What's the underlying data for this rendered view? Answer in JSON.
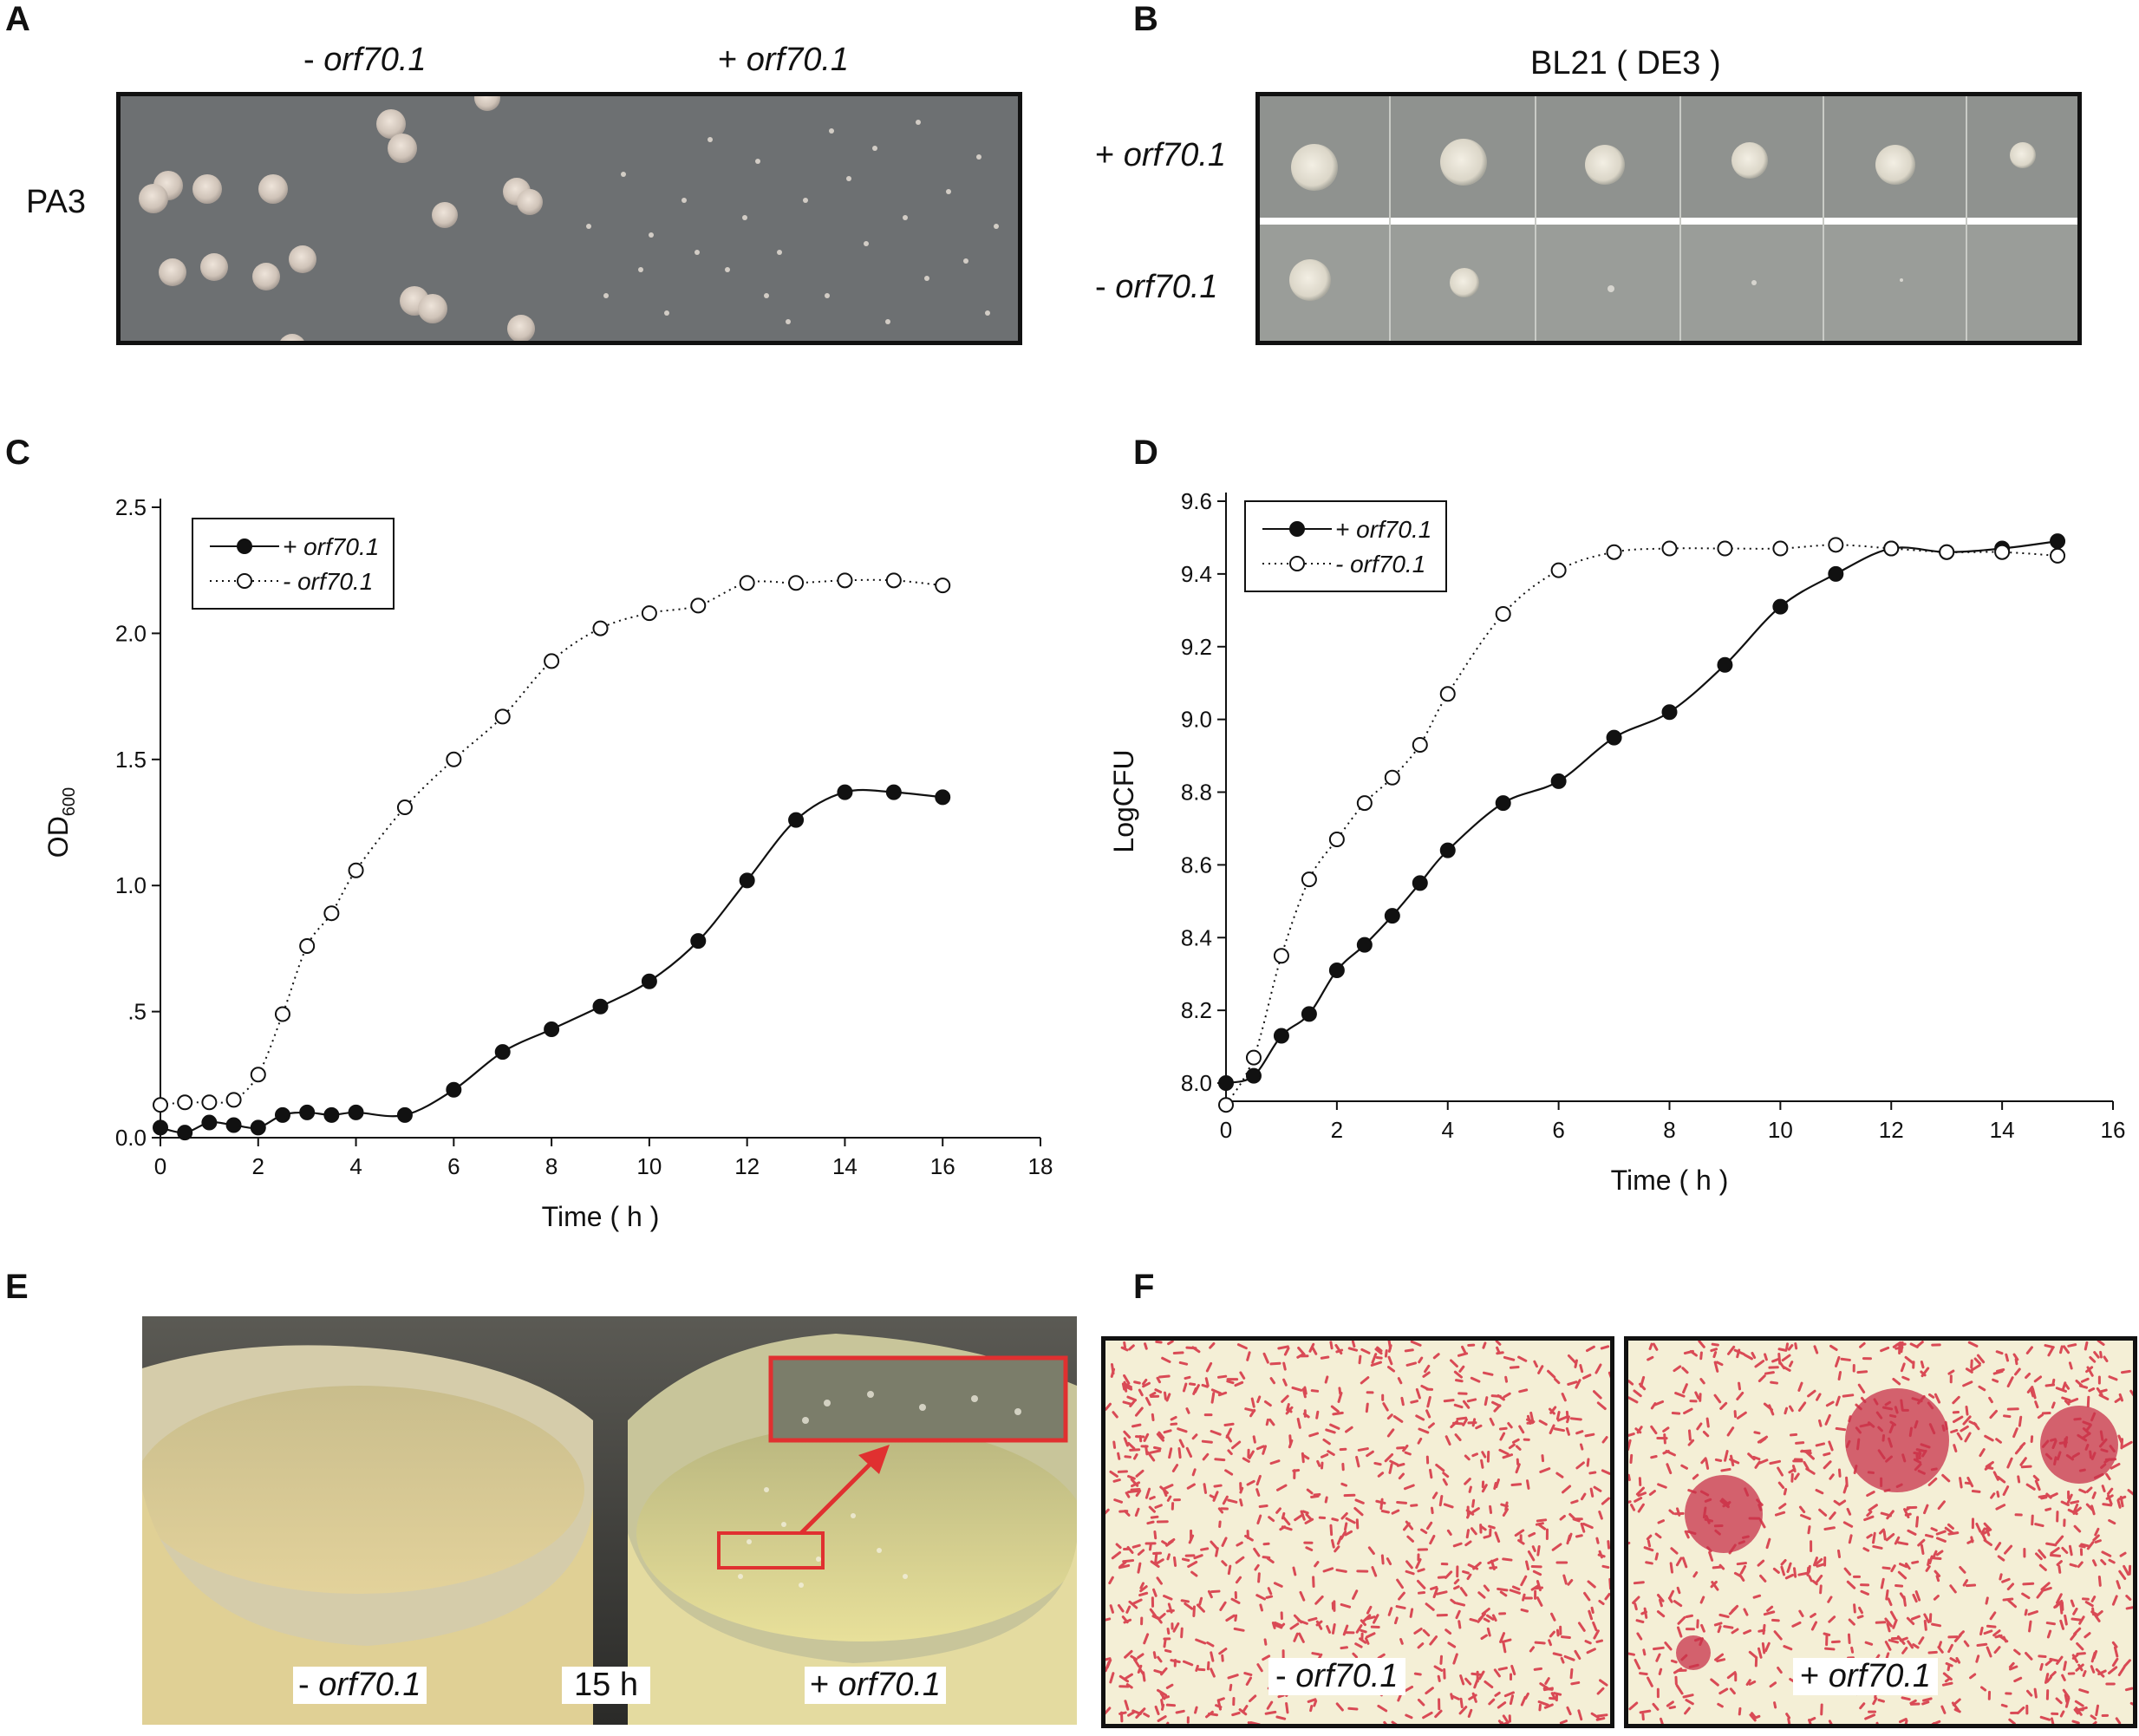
{
  "panels": {
    "A": {
      "letter": "A",
      "col_minus": "- ",
      "col_plus": "+ ",
      "gene": "orf70.1",
      "row_label": "PA3"
    },
    "B": {
      "letter": "B",
      "strain": "BL21 ( DE3 )",
      "row_plus_sign": "+ ",
      "row_minus_sign": "- ",
      "gene": "orf70.1"
    },
    "C": {
      "letter": "C"
    },
    "D": {
      "letter": "D"
    },
    "E": {
      "letter": "E",
      "left_sign": "- ",
      "right_sign": "+ ",
      "gene": "orf70.1",
      "time_label": "15 h"
    },
    "F": {
      "letter": "F",
      "left_sign": "- ",
      "right_sign": "+ ",
      "gene": "orf70.1"
    }
  },
  "chart_data": [
    {
      "panel": "C",
      "type": "line",
      "xlabel": "Time ( h )",
      "ylabel": "OD",
      "ylabel_sub": "600",
      "xlim": [
        0,
        18
      ],
      "ylim": [
        0,
        2.5
      ],
      "xticks": [
        0,
        2,
        4,
        6,
        8,
        10,
        12,
        14,
        16,
        18
      ],
      "yticks": [
        0,
        0.5,
        1.0,
        1.5,
        2.0,
        2.5
      ],
      "ytick_labels": [
        "0.0",
        ".5",
        "1.0",
        "1.5",
        "2.0",
        "2.5"
      ],
      "grid": false,
      "legend_position": "top-left",
      "series": [
        {
          "name": "+ orf70.1",
          "style": "solid-filled",
          "x": [
            0,
            0.5,
            1,
            1.5,
            2,
            2.5,
            3,
            3.5,
            4,
            5,
            6,
            7,
            8,
            9,
            10,
            11,
            12,
            13,
            14,
            15,
            16
          ],
          "values": [
            0.04,
            0.02,
            0.06,
            0.05,
            0.04,
            0.09,
            0.1,
            0.09,
            0.1,
            0.09,
            0.19,
            0.34,
            0.43,
            0.52,
            0.62,
            0.78,
            1.02,
            1.26,
            1.37,
            1.37,
            1.35
          ]
        },
        {
          "name": "- orf70.1",
          "style": "dotted-open",
          "x": [
            0,
            0.5,
            1,
            1.5,
            2,
            2.5,
            3,
            3.5,
            4,
            5,
            6,
            7,
            8,
            9,
            10,
            11,
            12,
            13,
            14,
            15,
            16
          ],
          "values": [
            0.13,
            0.14,
            0.14,
            0.15,
            0.25,
            0.49,
            0.76,
            0.89,
            1.06,
            1.31,
            1.5,
            1.67,
            1.89,
            2.02,
            2.08,
            2.11,
            2.2,
            2.2,
            2.21,
            2.21,
            2.19
          ]
        }
      ]
    },
    {
      "panel": "D",
      "type": "line",
      "xlabel": "Time ( h )",
      "ylabel": "LogCFU",
      "xlim": [
        0,
        16
      ],
      "ylim": [
        7.95,
        9.6
      ],
      "xticks": [
        0,
        2,
        4,
        6,
        8,
        10,
        12,
        14,
        16
      ],
      "yticks": [
        8.0,
        8.2,
        8.4,
        8.6,
        8.8,
        9.0,
        9.2,
        9.4,
        9.6
      ],
      "ytick_labels": [
        "8.0",
        "8.2",
        "8.4",
        "8.6",
        "8.8",
        "9.0",
        "9.2",
        "9.4",
        "9.6"
      ],
      "grid": false,
      "legend_position": "top-left",
      "series": [
        {
          "name": "+ orf70.1",
          "style": "solid-filled",
          "x": [
            0,
            0.5,
            1,
            1.5,
            2,
            2.5,
            3,
            3.5,
            4,
            5,
            6,
            7,
            8,
            9,
            10,
            11,
            12,
            13,
            14,
            15
          ],
          "values": [
            8.0,
            8.02,
            8.13,
            8.19,
            8.31,
            8.38,
            8.46,
            8.55,
            8.64,
            8.77,
            8.83,
            8.95,
            9.02,
            9.15,
            9.31,
            9.4,
            9.47,
            9.46,
            9.47,
            9.49
          ]
        },
        {
          "name": "- orf70.1",
          "style": "dotted-open",
          "x": [
            0,
            0.5,
            1,
            1.5,
            2,
            2.5,
            3,
            3.5,
            4,
            5,
            6,
            7,
            8,
            9,
            10,
            11,
            12,
            13,
            14,
            15
          ],
          "values": [
            7.94,
            8.07,
            8.35,
            8.56,
            8.67,
            8.77,
            8.84,
            8.93,
            9.07,
            9.29,
            9.41,
            9.46,
            9.47,
            9.47,
            9.47,
            9.48,
            9.47,
            9.46,
            9.46,
            9.45
          ]
        }
      ]
    }
  ]
}
